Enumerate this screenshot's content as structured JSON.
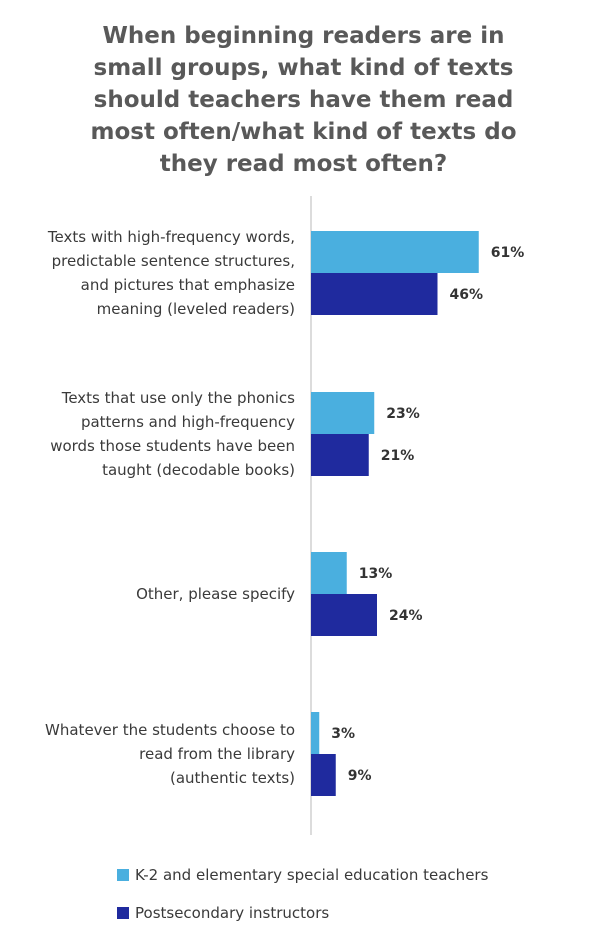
{
  "title_lines": [
    "When beginning readers are in",
    "small groups, what kind of texts",
    "should teachers have them read",
    "most often/what kind of texts do",
    "they read most often?"
  ],
  "colors": {
    "series1": "#4aafdf",
    "series2": "#1f2a9e",
    "axis": "#d0d0d0",
    "text": "#3a3a3a"
  },
  "chart_data": {
    "type": "bar",
    "orientation": "horizontal",
    "categories": [
      [
        "Texts with high-frequency words,",
        "predictable sentence structures,",
        "and pictures that emphasize",
        "meaning (leveled readers)"
      ],
      [
        "Texts that use only the phonics",
        "patterns and high-frequency",
        "words those students have been",
        "taught (decodable books)"
      ],
      [
        "Other, please specify"
      ],
      [
        "Whatever the students choose to",
        "read from the library",
        "(authentic texts)"
      ]
    ],
    "series": [
      {
        "name": "K-2 and elementary special education teachers",
        "values": [
          61,
          23,
          13,
          3
        ],
        "labels": [
          "61%",
          "23%",
          "13%",
          "3%"
        ]
      },
      {
        "name": "Postsecondary instructors",
        "values": [
          46,
          21,
          24,
          9
        ],
        "labels": [
          "46%",
          "21%",
          "24%",
          "9%"
        ]
      }
    ],
    "xlim": [
      0,
      100
    ],
    "legend_position": "bottom-left",
    "grid": false
  }
}
